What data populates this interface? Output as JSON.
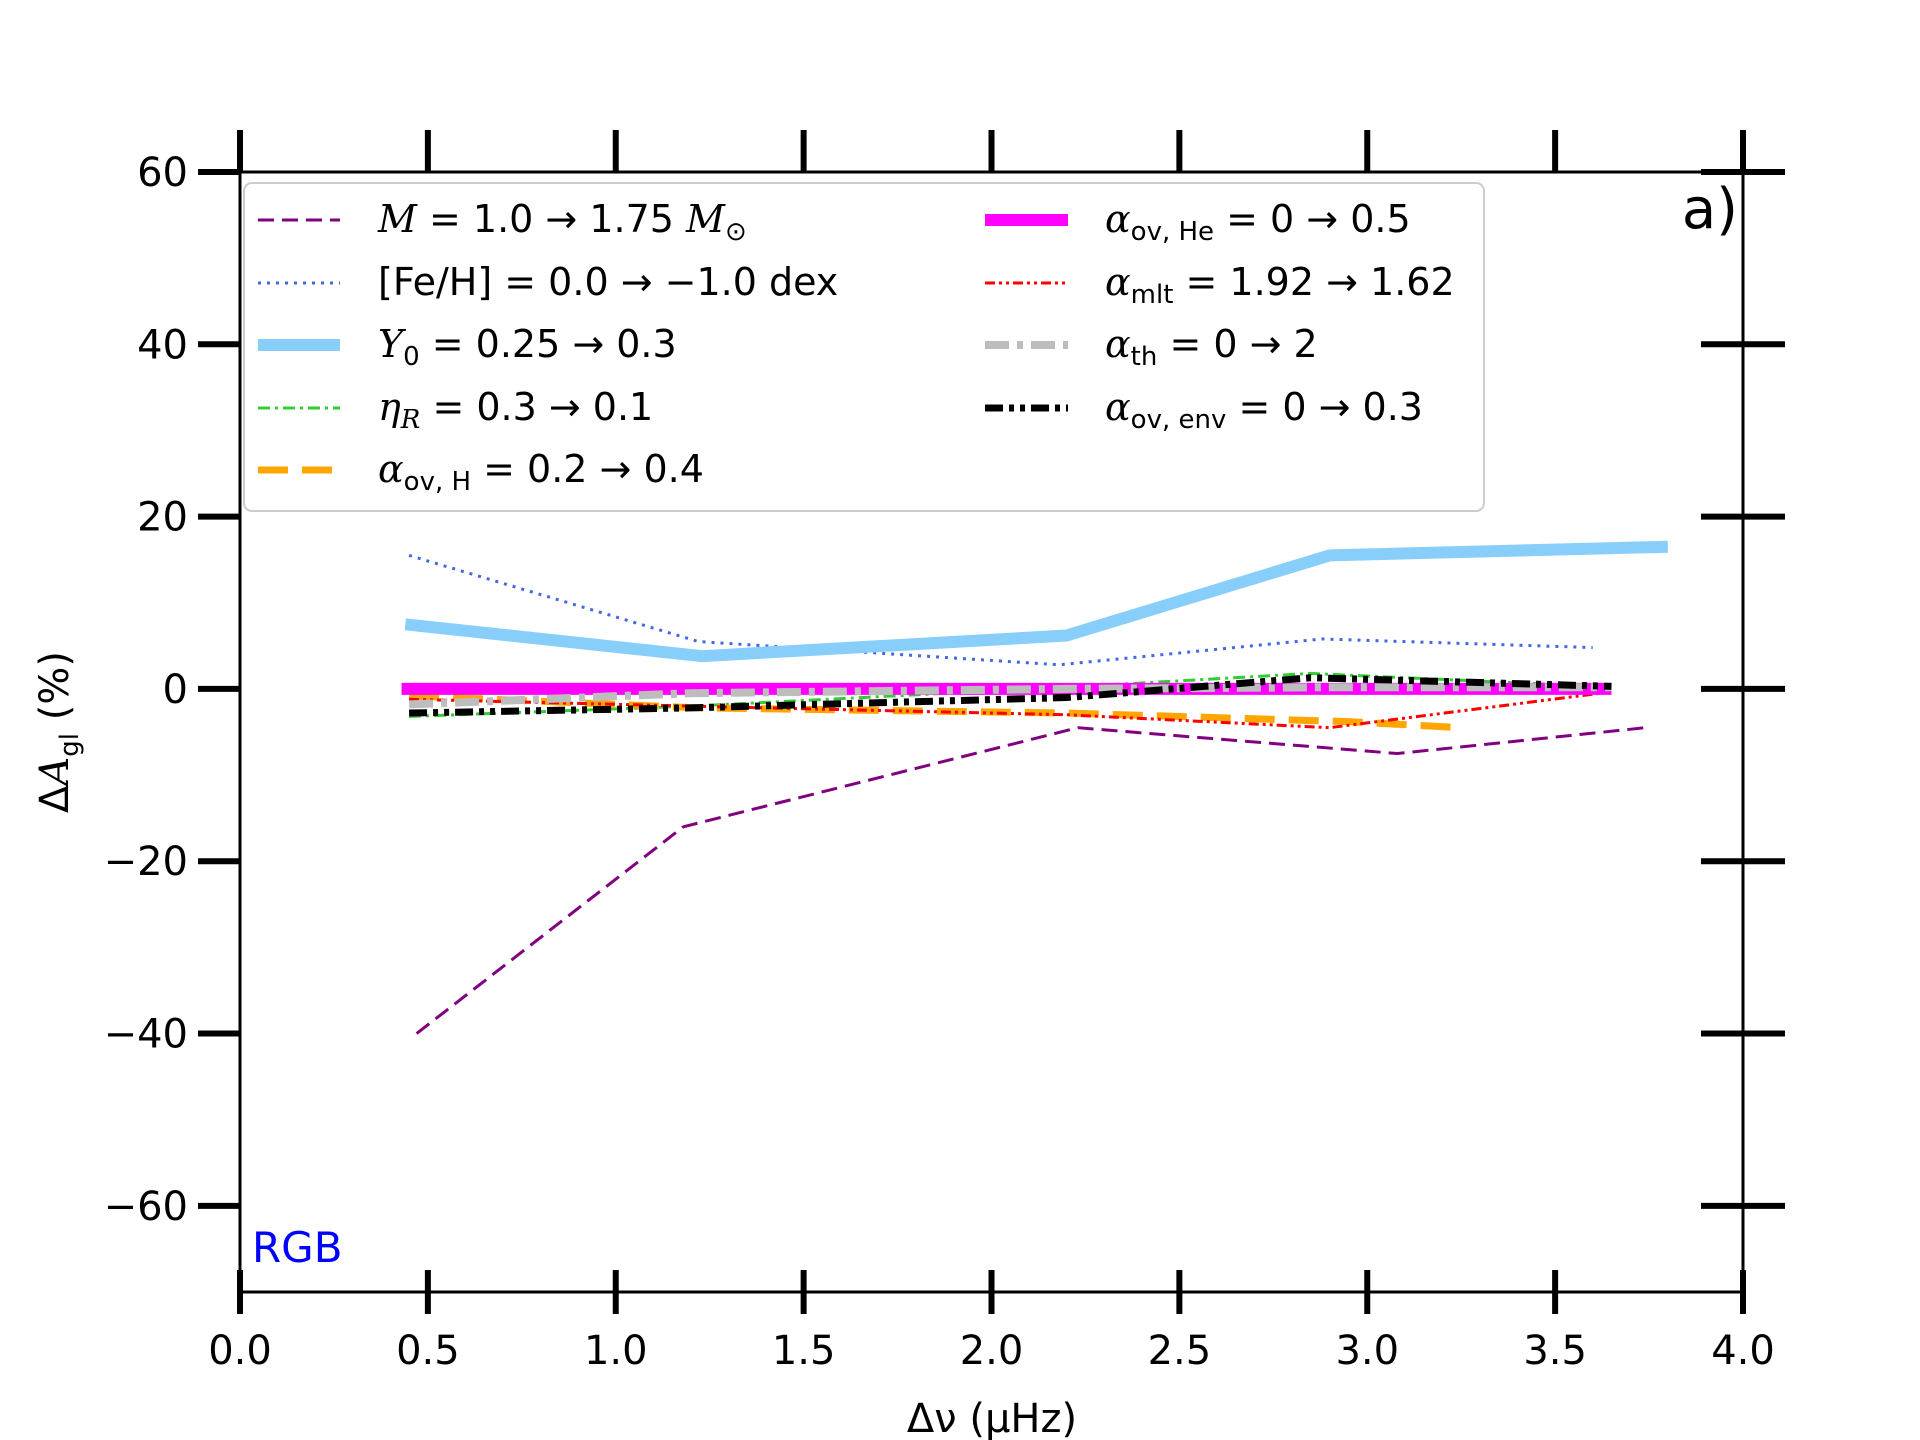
{
  "chart_data": {
    "type": "line",
    "panel_label": "a)",
    "annotation": "RGB",
    "annotation_color": "#0000ff",
    "xlabel": "Δν (μHz)",
    "ylabel": "ΔA_gl (%)",
    "xlim": [
      0.0,
      4.0
    ],
    "ylim": [
      -70,
      60
    ],
    "xticks": [
      0.0,
      0.5,
      1.0,
      1.5,
      2.0,
      2.5,
      3.0,
      3.5,
      4.0
    ],
    "xtick_labels": [
      "0.0",
      "0.5",
      "1.0",
      "1.5",
      "2.0",
      "2.5",
      "3.0",
      "3.5",
      "4.0"
    ],
    "yticks": [
      -60,
      -40,
      -20,
      0,
      20,
      40,
      60
    ],
    "ytick_labels": [
      "−60",
      "−40",
      "−20",
      "0",
      "20",
      "40",
      "60"
    ],
    "legend_position": "top",
    "series": [
      {
        "key": "mass",
        "name": "M = 1.0 → 1.75 M⊙",
        "color": "#800080",
        "style": "dashed-thin",
        "x": [
          0.47,
          1.18,
          2.23,
          3.08,
          3.74
        ],
        "y": [
          -40,
          -16,
          -4.5,
          -7.5,
          -4.5
        ]
      },
      {
        "key": "feh",
        "name": "[Fe/H] = 0.0 → −1.0 dex",
        "color": "#4169e1",
        "style": "dotted",
        "x": [
          0.45,
          1.22,
          2.18,
          2.88,
          3.6
        ],
        "y": [
          15.5,
          5.5,
          2.8,
          5.8,
          4.8
        ]
      },
      {
        "key": "y0",
        "name": "Y0 = 0.25 → 0.3",
        "color": "#87cefa",
        "style": "solid-thick",
        "x": [
          0.44,
          1.23,
          2.2,
          2.9,
          3.8
        ],
        "y": [
          7.5,
          3.8,
          6.2,
          15.5,
          16.5
        ]
      },
      {
        "key": "etar",
        "name": "ηR = 0.3 → 0.1",
        "color": "#32cd32",
        "style": "dashdot-thin",
        "x": [
          0.45,
          1.2,
          2.2,
          2.85,
          3.65
        ],
        "y": [
          -3.2,
          -2.0,
          0.2,
          1.8,
          0.2
        ]
      },
      {
        "key": "aovh",
        "name": "αov,H = 0.2 → 0.4",
        "color": "#ffa500",
        "style": "dashed-thick",
        "x": [
          0.45,
          1.22,
          2.2,
          2.95,
          3.25
        ],
        "y": [
          -0.8,
          -2.2,
          -2.8,
          -3.8,
          -4.5
        ]
      },
      {
        "key": "aovhe",
        "name": "αov,He = 0 → 0.5",
        "color": "#ff00ff",
        "style": "solid-thick",
        "x": [
          0.43,
          3.65
        ],
        "y": [
          0.0,
          0.0
        ]
      },
      {
        "key": "amlt",
        "name": "αmlt = 1.92 → 1.62",
        "color": "#ff0000",
        "style": "dashdotdot-thin",
        "x": [
          0.45,
          1.2,
          2.2,
          2.9,
          3.62
        ],
        "y": [
          -1.2,
          -2.0,
          -3.0,
          -4.5,
          -0.5
        ]
      },
      {
        "key": "ath",
        "name": "αth = 0 → 2",
        "color": "#bdbdbd",
        "style": "dashdot-thick",
        "x": [
          0.45,
          1.2,
          2.2,
          2.9,
          3.65
        ],
        "y": [
          -1.8,
          -0.5,
          0.0,
          0.2,
          0.2
        ]
      },
      {
        "key": "aovenv",
        "name": "αov,env = 0 → 0.3",
        "color": "#000000",
        "style": "dashdotdot-thick",
        "x": [
          0.45,
          1.2,
          2.2,
          2.85,
          3.65
        ],
        "y": [
          -2.8,
          -2.2,
          -1.0,
          1.3,
          0.3
        ]
      }
    ]
  }
}
